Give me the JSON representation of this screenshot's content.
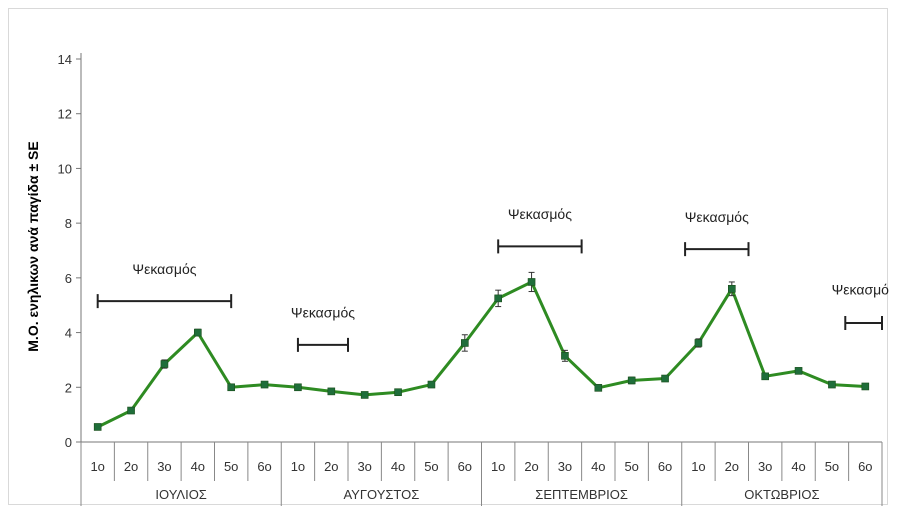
{
  "chart_data": {
    "type": "line",
    "ylabel": "Μ.Ο. ενηλικων ανά παγίδα ± SE",
    "xlabel": "",
    "ylim": [
      0,
      14
    ],
    "yticks": [
      0,
      2,
      4,
      6,
      8,
      10,
      12,
      14
    ],
    "grid": false,
    "legend": "none",
    "colors": {
      "line": "#2e8b22",
      "marker": "#1f6e3a",
      "error": "#333333",
      "bracket": "#222222"
    },
    "groups": [
      {
        "label": "ΙΟΥΛΙΟΣ",
        "weeks": [
          "1ο",
          "2ο",
          "3ο",
          "4ο",
          "5ο",
          "6ο"
        ]
      },
      {
        "label": "ΑΥΓΟΥΣΤΟΣ",
        "weeks": [
          "1ο",
          "2ο",
          "3ο",
          "4ο",
          "5ο",
          "6ο"
        ]
      },
      {
        "label": "ΣΕΠΤΕΜΒΡΙΟΣ",
        "weeks": [
          "1ο",
          "2ο",
          "3ο",
          "4ο",
          "5ο",
          "6ο"
        ]
      },
      {
        "label": "ΟΚΤΩΒΡΙΟΣ",
        "weeks": [
          "1ο",
          "2ο",
          "3ο",
          "4ο",
          "5ο",
          "6ο"
        ]
      }
    ],
    "series": [
      {
        "values": [
          0.55,
          1.15,
          2.85,
          4.0,
          2.0,
          2.1,
          2.0,
          1.85,
          1.72,
          1.82,
          2.1,
          3.62,
          5.25,
          5.85,
          3.15,
          1.98,
          2.25,
          2.32,
          3.62,
          5.6,
          2.4,
          2.6,
          2.1,
          2.03
        ],
        "errors": [
          0.05,
          0.08,
          0.15,
          0.12,
          0.08,
          0.06,
          0.06,
          0.06,
          0.06,
          0.07,
          0.08,
          0.3,
          0.3,
          0.35,
          0.2,
          0.06,
          0.12,
          0.08,
          0.15,
          0.25,
          0.08,
          0.1,
          0.08,
          0.08
        ]
      }
    ],
    "annotations": [
      {
        "text": "Ψεκασμός",
        "start": 1,
        "end": 5,
        "level": 5.15,
        "text_level": 6.15
      },
      {
        "text": "Ψεκασμός",
        "start": 7,
        "end": 8.5,
        "level": 3.55,
        "text_level": 4.55
      },
      {
        "text": "Ψεκασμός",
        "start": 13,
        "end": 15.5,
        "level": 7.15,
        "text_level": 8.15
      },
      {
        "text": "Ψεκασμός",
        "start": 18.6,
        "end": 20.5,
        "level": 7.05,
        "text_level": 8.05
      },
      {
        "text": "Ψεκασμός",
        "start": 23.4,
        "end": 24.5,
        "level": 4.35,
        "text_level": 5.4
      }
    ]
  }
}
